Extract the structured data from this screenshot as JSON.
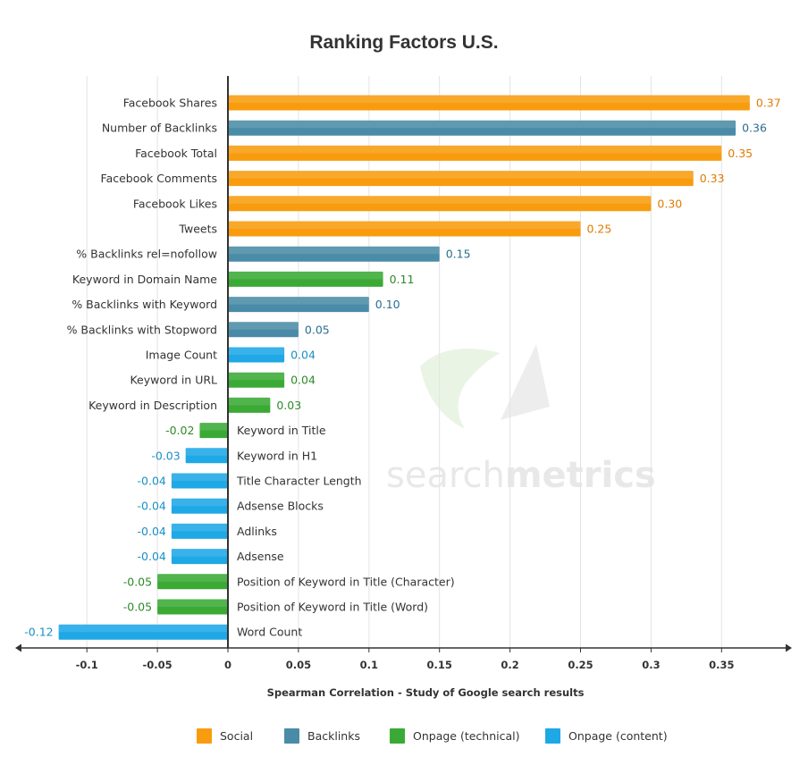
{
  "chart_data": {
    "type": "bar",
    "orientation": "horizontal",
    "title": "Ranking Factors U.S.",
    "xlabel": "Spearman Correlation - Study of Google search results",
    "ylabel": "",
    "xlim": [
      -0.15,
      0.4
    ],
    "xticks": [
      -0.1,
      -0.05,
      0,
      0.05,
      0.1,
      0.15,
      0.2,
      0.25,
      0.3,
      0.35
    ],
    "tick_labels": [
      "-0.1",
      "-0.05",
      "0",
      "0.05",
      "0.1",
      "0.15",
      "0.2",
      "0.25",
      "0.3",
      "0.35"
    ],
    "grid": "vertical",
    "legend_position": "bottom",
    "series": [
      {
        "name": "Social",
        "color": "#f89c0e"
      },
      {
        "name": "Backlinks",
        "color": "#4a8ca7"
      },
      {
        "name": "Onpage (technical)",
        "color": "#3aaa35"
      },
      {
        "name": "Onpage (content)",
        "color": "#1ea8e6"
      }
    ],
    "bars": [
      {
        "label": "Facebook Shares",
        "value": 0.37,
        "value_label": "0.37",
        "series": "Social"
      },
      {
        "label": "Number of Backlinks",
        "value": 0.36,
        "value_label": "0.36",
        "series": "Backlinks"
      },
      {
        "label": "Facebook Total",
        "value": 0.35,
        "value_label": "0.35",
        "series": "Social"
      },
      {
        "label": "Facebook Comments",
        "value": 0.33,
        "value_label": "0.33",
        "series": "Social"
      },
      {
        "label": "Facebook Likes",
        "value": 0.3,
        "value_label": "0.30",
        "series": "Social"
      },
      {
        "label": "Tweets",
        "value": 0.25,
        "value_label": "0.25",
        "series": "Social"
      },
      {
        "label": "% Backlinks rel=nofollow",
        "value": 0.15,
        "value_label": "0.15",
        "series": "Backlinks"
      },
      {
        "label": "Keyword in Domain Name",
        "value": 0.11,
        "value_label": "0.11",
        "series": "Onpage (technical)"
      },
      {
        "label": "% Backlinks with Keyword",
        "value": 0.1,
        "value_label": "0.10",
        "series": "Backlinks"
      },
      {
        "label": "% Backlinks with Stopword",
        "value": 0.05,
        "value_label": "0.05",
        "series": "Backlinks"
      },
      {
        "label": "Image Count",
        "value": 0.04,
        "value_label": "0.04",
        "series": "Onpage (content)"
      },
      {
        "label": "Keyword in URL",
        "value": 0.04,
        "value_label": "0.04",
        "series": "Onpage (technical)"
      },
      {
        "label": "Keyword in Description",
        "value": 0.03,
        "value_label": "0.03",
        "series": "Onpage (technical)"
      },
      {
        "label": "Keyword in Title",
        "value": -0.02,
        "value_label": "-0.02",
        "series": "Onpage (technical)"
      },
      {
        "label": "Keyword in H1",
        "value": -0.03,
        "value_label": "-0.03",
        "series": "Onpage (content)"
      },
      {
        "label": "Title Character Length",
        "value": -0.04,
        "value_label": "-0.04",
        "series": "Onpage (content)"
      },
      {
        "label": "Adsense Blocks",
        "value": -0.04,
        "value_label": "-0.04",
        "series": "Onpage (content)"
      },
      {
        "label": "Adlinks",
        "value": -0.04,
        "value_label": "-0.04",
        "series": "Onpage (content)"
      },
      {
        "label": "Adsense",
        "value": -0.04,
        "value_label": "-0.04",
        "series": "Onpage (content)"
      },
      {
        "label": "Position of Keyword in Title (Character)",
        "value": -0.05,
        "value_label": "-0.05",
        "series": "Onpage (technical)"
      },
      {
        "label": "Position of Keyword in Title (Word)",
        "value": -0.05,
        "value_label": "-0.05",
        "series": "Onpage (technical)"
      },
      {
        "label": "Word Count",
        "value": -0.12,
        "value_label": "-0.12",
        "series": "Onpage (content)"
      }
    ],
    "label_colors": {
      "Social": "#e07b00",
      "Backlinks": "#2a6f8e",
      "Onpage (technical)": "#2e8a28",
      "Onpage (content)": "#1a8fc6"
    }
  },
  "watermark": {
    "text_light": "search",
    "text_bold": "metrics"
  }
}
